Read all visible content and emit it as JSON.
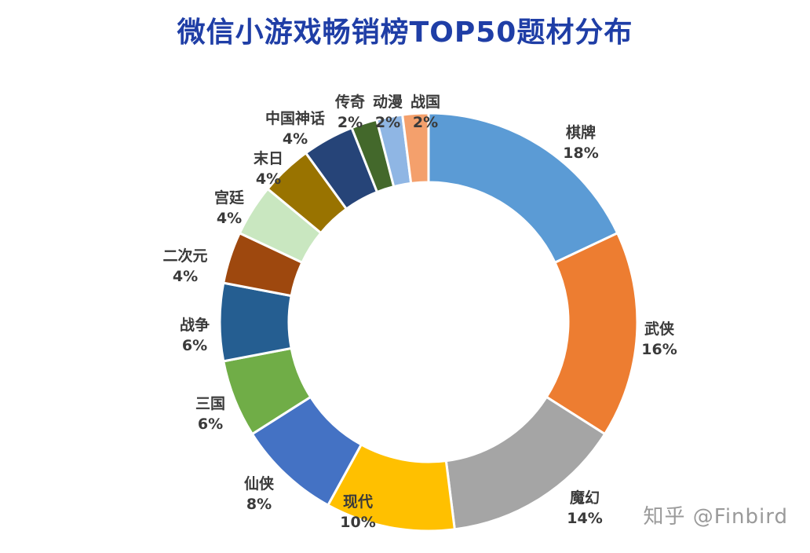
{
  "title": "微信小游戏畅销榜TOP50题材分布",
  "watermark": "知乎 @Finbird",
  "chart_data": {
    "type": "pie",
    "title": "微信小游戏畅销榜TOP50题材分布",
    "donut": true,
    "categories": [
      "棋牌",
      "武侠",
      "魔幻",
      "现代",
      "仙侠",
      "三国",
      "战争",
      "二次元",
      "宫廷",
      "末日",
      "中国神话",
      "传奇",
      "动漫",
      "战国"
    ],
    "values": [
      18,
      16,
      14,
      10,
      8,
      6,
      6,
      4,
      4,
      4,
      4,
      2,
      2,
      2
    ],
    "value_labels": [
      "18%",
      "16%",
      "14%",
      "10%",
      "8%",
      "6%",
      "6%",
      "4%",
      "4%",
      "4%",
      "4%",
      "2%",
      "2%",
      "2%"
    ],
    "colors": [
      "#5b9bd5",
      "#ed7d31",
      "#a5a5a5",
      "#ffc000",
      "#4472c4",
      "#70ad47",
      "#255e91",
      "#9e480e",
      "#c9e7c0",
      "#997300",
      "#264478",
      "#43682b",
      "#8fb6e4",
      "#f4a06c"
    ]
  }
}
